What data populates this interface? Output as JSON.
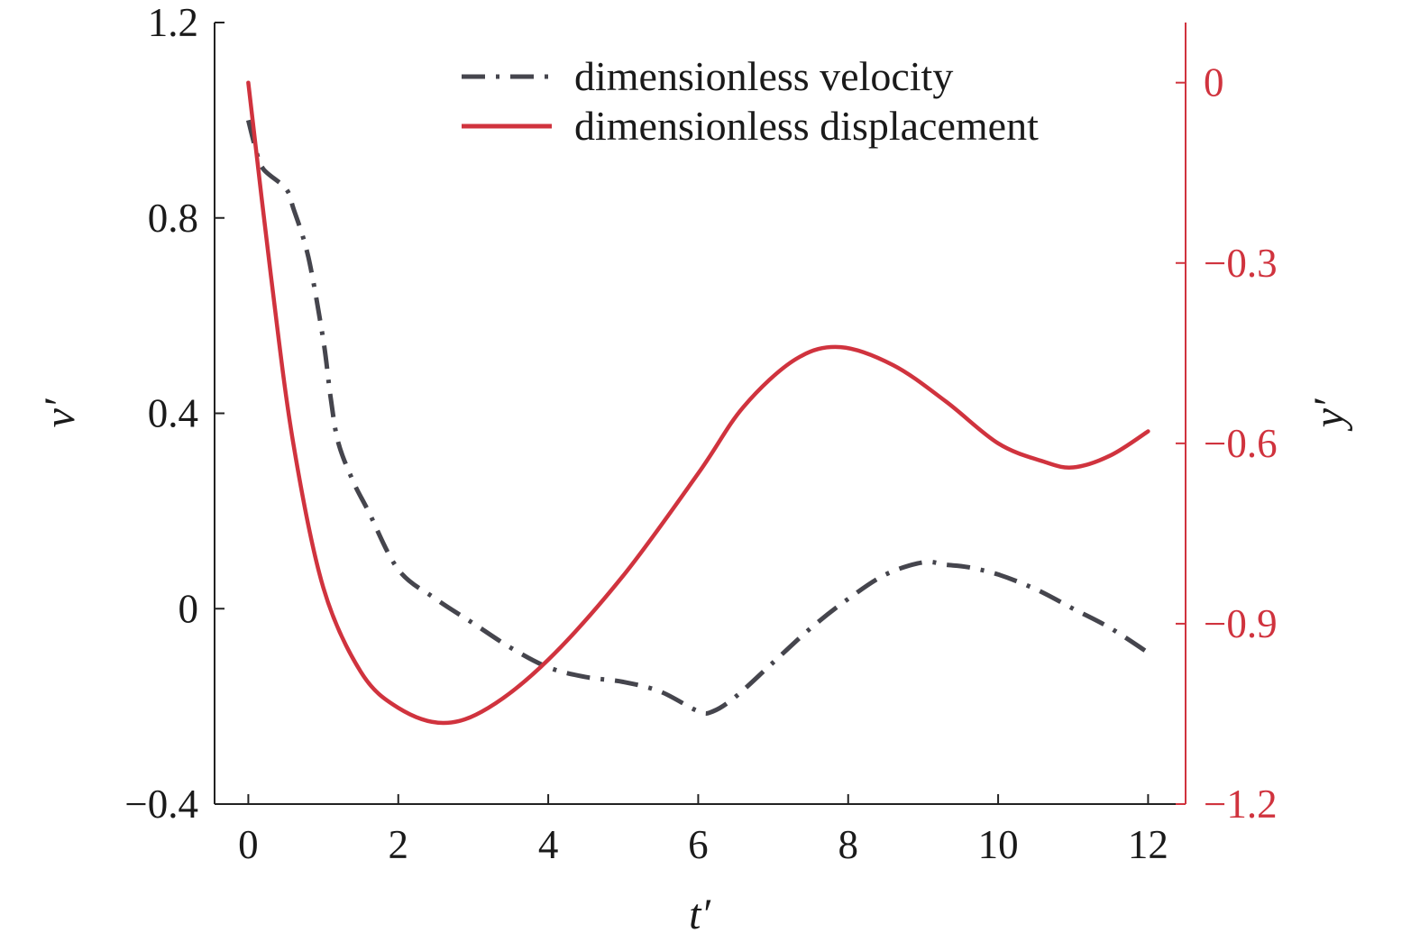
{
  "chart_data": {
    "type": "line",
    "xlabel": "t′",
    "ylabel": "v′",
    "ylabel_right": "y′",
    "xlim": [
      -0.45,
      12.5
    ],
    "xticks": [
      0,
      2,
      4,
      6,
      8,
      10,
      12
    ],
    "xtick_labels": [
      "0",
      "2",
      "4",
      "6",
      "8",
      "10",
      "12"
    ],
    "ylim": [
      -0.4,
      1.2
    ],
    "yticks": [
      -0.4,
      0,
      0.4,
      0.8,
      1.2
    ],
    "ytick_labels": [
      "−0.4",
      "0",
      "0.4",
      "0.8",
      "1.2"
    ],
    "ylim_right": [
      -1.2,
      0.1
    ],
    "yticks_right": [
      -1.2,
      -0.9,
      -0.6,
      -0.3,
      0
    ],
    "ytick_labels_right": [
      "−1.2",
      "−0.9",
      "−0.6",
      "−0.3",
      "0"
    ],
    "grid": false,
    "legend_position": "top-right",
    "series": [
      {
        "name": "dimensionless velocity",
        "axis": "left",
        "style": "dash-dot",
        "color": "#45454d",
        "x": [
          0,
          0.1,
          0.2,
          0.5,
          0.6,
          0.8,
          1.0,
          1.1,
          1.2,
          1.4,
          1.6,
          2.0,
          2.5,
          3.0,
          3.5,
          4.0,
          4.5,
          5.0,
          5.5,
          6.0,
          6.2,
          6.5,
          7.0,
          7.5,
          8.0,
          8.5,
          9.0,
          9.3,
          9.6,
          10.0,
          10.5,
          11.0,
          11.5,
          12.0
        ],
        "y": [
          1.0,
          0.94,
          0.9,
          0.86,
          0.82,
          0.72,
          0.55,
          0.43,
          0.34,
          0.26,
          0.2,
          0.08,
          0.02,
          -0.03,
          -0.08,
          -0.12,
          -0.14,
          -0.15,
          -0.17,
          -0.21,
          -0.21,
          -0.18,
          -0.11,
          -0.04,
          0.02,
          0.07,
          0.095,
          0.09,
          0.085,
          0.07,
          0.04,
          0.0,
          -0.04,
          -0.09
        ]
      },
      {
        "name": "dimensionless displacement",
        "axis": "right",
        "style": "solid",
        "color": "#d0333e",
        "x": [
          0,
          0.3,
          0.6,
          1.0,
          1.5,
          2.0,
          2.6,
          3.2,
          4.0,
          5.0,
          6.0,
          6.6,
          7.3,
          7.9,
          8.6,
          9.3,
          10.0,
          10.6,
          11.0,
          11.5,
          12.0
        ],
        "y": [
          0.0,
          -0.32,
          -0.6,
          -0.84,
          -0.98,
          -1.04,
          -1.065,
          -1.04,
          -0.96,
          -0.82,
          -0.65,
          -0.54,
          -0.46,
          -0.44,
          -0.47,
          -0.53,
          -0.6,
          -0.63,
          -0.64,
          -0.62,
          -0.58
        ]
      }
    ]
  }
}
